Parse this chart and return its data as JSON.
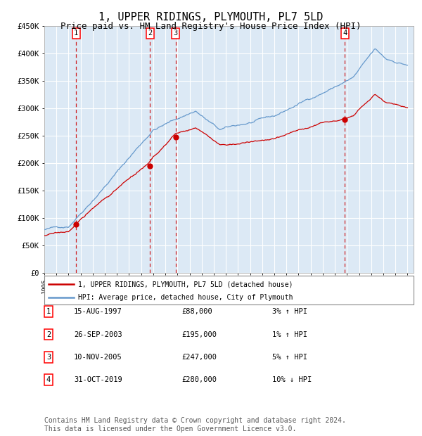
{
  "title": "1, UPPER RIDINGS, PLYMOUTH, PL7 5LD",
  "subtitle": "Price paid vs. HM Land Registry's House Price Index (HPI)",
  "title_fontsize": 11,
  "subtitle_fontsize": 9,
  "background_color": "#ffffff",
  "plot_bg_color": "#dce9f5",
  "grid_color": "#ffffff",
  "ylim": [
    0,
    450000
  ],
  "yticks": [
    0,
    50000,
    100000,
    150000,
    200000,
    250000,
    300000,
    350000,
    400000,
    450000
  ],
  "ytick_labels": [
    "£0",
    "£50K",
    "£100K",
    "£150K",
    "£200K",
    "£250K",
    "£300K",
    "£350K",
    "£400K",
    "£450K"
  ],
  "hpi_color": "#6699cc",
  "price_color": "#cc0000",
  "sale_dot_color": "#cc0000",
  "vline_color": "#cc0000",
  "sale1_year": 1997.63,
  "sale1_price": 88000,
  "sale1_label": "1",
  "sale2_year": 2003.73,
  "sale2_price": 195000,
  "sale2_label": "2",
  "sale3_year": 2005.85,
  "sale3_price": 247000,
  "sale3_label": "3",
  "sale4_year": 2019.83,
  "sale4_price": 280000,
  "sale4_label": "4",
  "legend_house": "1, UPPER RIDINGS, PLYMOUTH, PL7 5LD (detached house)",
  "legend_hpi": "HPI: Average price, detached house, City of Plymouth",
  "table_rows": [
    [
      "1",
      "15-AUG-1997",
      "£88,000",
      "3% ↑ HPI"
    ],
    [
      "2",
      "26-SEP-2003",
      "£195,000",
      "1% ↑ HPI"
    ],
    [
      "3",
      "10-NOV-2005",
      "£247,000",
      "5% ↑ HPI"
    ],
    [
      "4",
      "31-OCT-2019",
      "£280,000",
      "10% ↓ HPI"
    ]
  ],
  "footnote": "Contains HM Land Registry data © Crown copyright and database right 2024.\nThis data is licensed under the Open Government Licence v3.0.",
  "footnote_fontsize": 7
}
